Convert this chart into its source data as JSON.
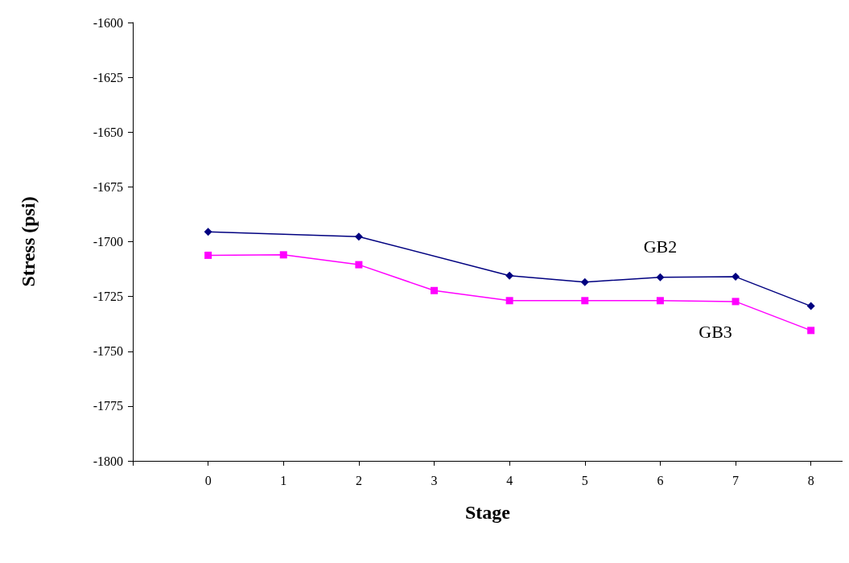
{
  "chart_data": {
    "type": "line",
    "xlabel": "Stage",
    "ylabel": "Stress (psi)",
    "x": [
      0,
      1,
      2,
      3,
      4,
      5,
      6,
      7,
      8
    ],
    "series": [
      {
        "name": "GB2",
        "color": "#000080",
        "marker": "diamond",
        "values": [
          -1695.5,
          null,
          -1697.7,
          null,
          -1715.5,
          -1718.4,
          -1716.2,
          -1716,
          -1729.4
        ]
      },
      {
        "name": "GB3",
        "color": "#ff00ff",
        "marker": "square",
        "values": [
          -1706.2,
          -1706,
          -1710.5,
          -1722.3,
          -1726.9,
          -1726.9,
          -1726.9,
          -1727.3,
          -1740.5
        ]
      }
    ],
    "xlim": [
      -1,
      8.42
    ],
    "xticks": [
      {
        "value": -1,
        "label": null
      },
      0,
      1,
      2,
      3,
      4,
      5,
      6,
      7,
      8
    ],
    "ylim": [
      -1800,
      -1600
    ],
    "yticks": [
      -1800,
      -1775,
      -1750,
      -1725,
      -1700,
      -1675,
      -1650,
      -1625,
      -1600
    ],
    "grid": false,
    "legend": false,
    "line_style": "solid"
  }
}
